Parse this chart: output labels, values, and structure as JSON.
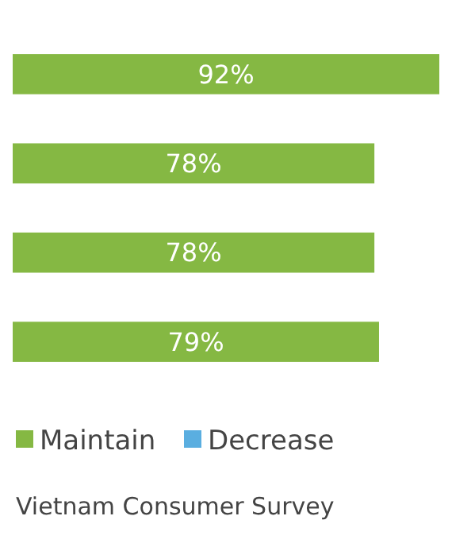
{
  "chart_data": {
    "type": "bar",
    "orientation": "horizontal",
    "stacked": true,
    "categories": [
      null,
      null,
      null,
      null
    ],
    "legend": "bottom",
    "series": [
      {
        "name": "Maintain",
        "color": "#85b843",
        "values": [
          92,
          78,
          78,
          79
        ],
        "value_labels": [
          "92%",
          "78%",
          "78%",
          "79%"
        ]
      },
      {
        "name": "Decrease",
        "color": "#5aaee0",
        "values": [
          null,
          null,
          null,
          null
        ]
      }
    ],
    "annotations": [
      "Vietnam Consumer Survey"
    ]
  }
}
